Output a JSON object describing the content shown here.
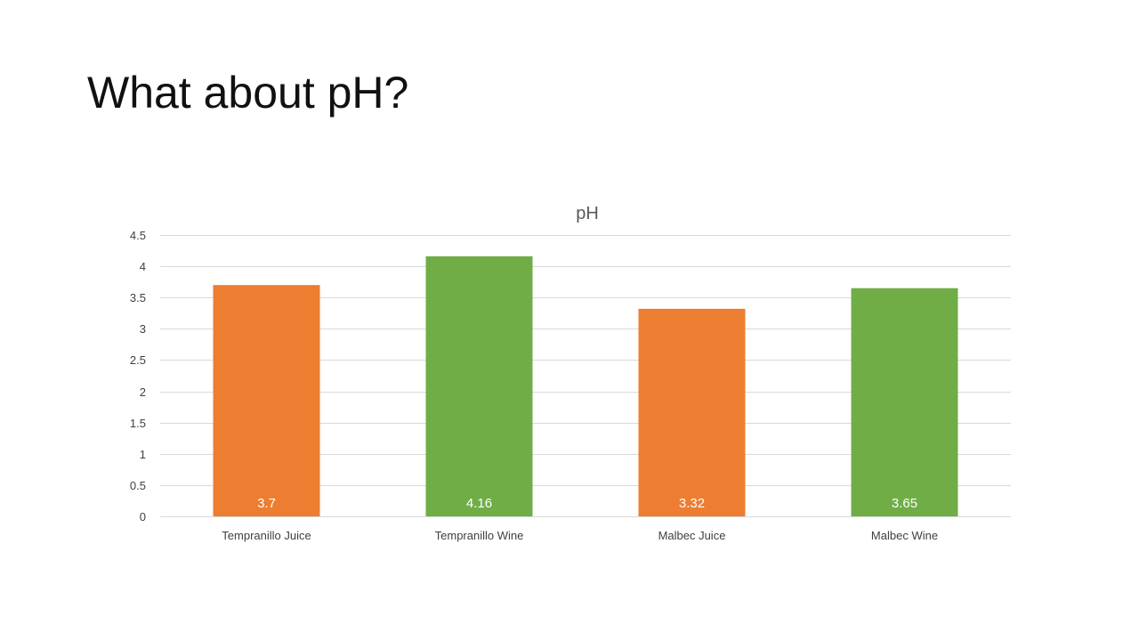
{
  "slide": {
    "title": "What about pH?"
  },
  "chart_data": {
    "type": "bar",
    "title": "pH",
    "xlabel": "",
    "ylabel": "",
    "categories": [
      "Tempranillo Juice",
      "Tempranillo Wine",
      "Malbec Juice",
      "Malbec Wine"
    ],
    "values": [
      3.7,
      4.16,
      3.32,
      3.65
    ],
    "data_labels": [
      "3.7",
      "4.16",
      "3.32",
      "3.65"
    ],
    "bar_colors": [
      "#ED7D31",
      "#70AD47",
      "#ED7D31",
      "#70AD47"
    ],
    "ylim": [
      0,
      4.5
    ],
    "yticks": [
      0,
      0.5,
      1,
      1.5,
      2,
      2.5,
      3,
      3.5,
      4,
      4.5
    ],
    "ytick_labels": [
      "0",
      "0.5",
      "1",
      "1.5",
      "2",
      "2.5",
      "3",
      "3.5",
      "4",
      "4.5"
    ],
    "grid": true,
    "gridline_color": "#d9d9d9",
    "legend": "none"
  }
}
